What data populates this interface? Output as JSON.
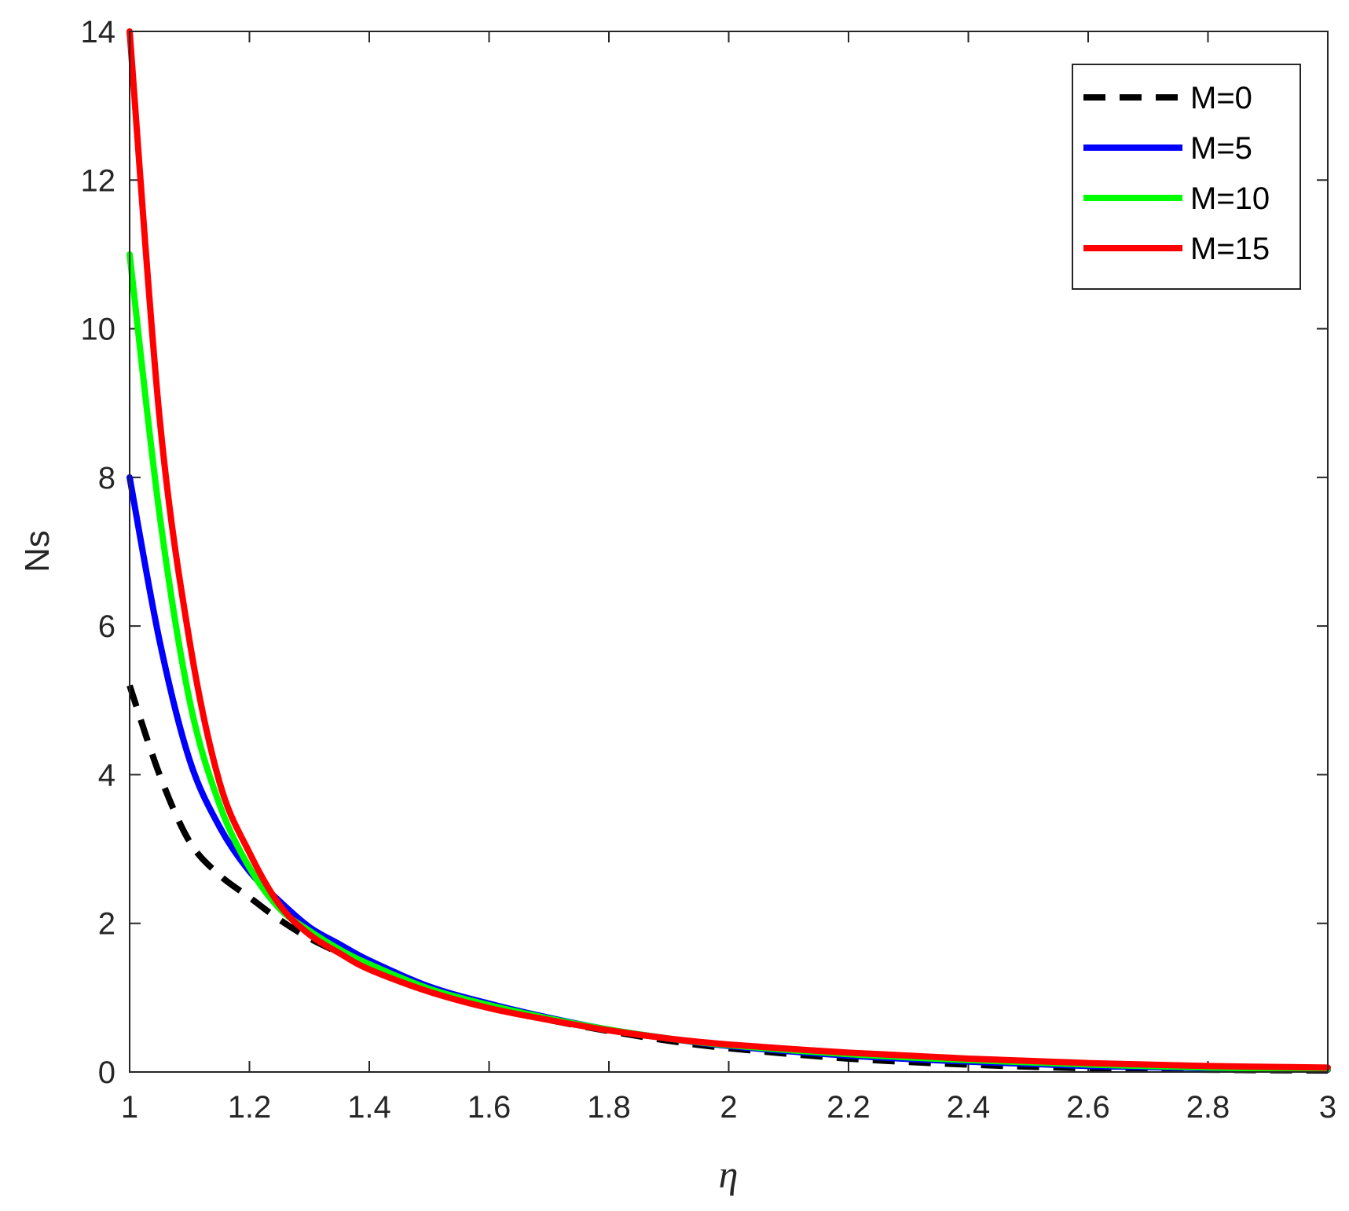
{
  "chart_data": {
    "type": "line",
    "title": "",
    "xlabel": "η",
    "ylabel": "Ns",
    "xlim": [
      1,
      3
    ],
    "ylim": [
      0,
      14
    ],
    "xticks": [
      1,
      1.2,
      1.4,
      1.6,
      1.8,
      2,
      2.2,
      2.4,
      2.6,
      2.8,
      3
    ],
    "xtick_labels": [
      "1",
      "1.2",
      "1.4",
      "1.6",
      "1.8",
      "2",
      "2.2",
      "2.4",
      "2.6",
      "2.8",
      "3"
    ],
    "yticks": [
      0,
      2,
      4,
      6,
      8,
      10,
      12,
      14
    ],
    "ytick_labels": [
      "0",
      "2",
      "4",
      "6",
      "8",
      "10",
      "12",
      "14"
    ],
    "grid": false,
    "legend_position": "top-right",
    "x": [
      1.0,
      1.05,
      1.1,
      1.15,
      1.2,
      1.25,
      1.3,
      1.35,
      1.4,
      1.5,
      1.6,
      1.7,
      1.8,
      1.9,
      2.0,
      2.2,
      2.4,
      2.6,
      2.8,
      3.0
    ],
    "series": [
      {
        "name": "M=0",
        "color": "#000000",
        "style": "dashed",
        "values": [
          5.2,
          4.0,
          3.1,
          2.65,
          2.35,
          2.05,
          1.8,
          1.6,
          1.4,
          1.1,
          0.88,
          0.7,
          0.55,
          0.42,
          0.32,
          0.18,
          0.1,
          0.05,
          0.03,
          0.02
        ]
      },
      {
        "name": "M=5",
        "color": "#0000ff",
        "style": "solid",
        "values": [
          8.0,
          5.8,
          4.2,
          3.3,
          2.7,
          2.3,
          1.95,
          1.72,
          1.5,
          1.15,
          0.92,
          0.73,
          0.57,
          0.45,
          0.35,
          0.22,
          0.14,
          0.08,
          0.05,
          0.03
        ]
      },
      {
        "name": "M=10",
        "color": "#00ff00",
        "style": "solid",
        "values": [
          11.0,
          7.5,
          5.0,
          3.6,
          2.75,
          2.2,
          1.9,
          1.65,
          1.45,
          1.12,
          0.9,
          0.72,
          0.57,
          0.45,
          0.36,
          0.24,
          0.16,
          0.1,
          0.06,
          0.04
        ]
      },
      {
        "name": "M=15",
        "color": "#ff0000",
        "style": "solid",
        "values": [
          14.0,
          8.8,
          5.8,
          3.9,
          2.95,
          2.25,
          1.85,
          1.6,
          1.38,
          1.08,
          0.86,
          0.7,
          0.56,
          0.45,
          0.37,
          0.26,
          0.18,
          0.12,
          0.08,
          0.06
        ]
      }
    ]
  }
}
